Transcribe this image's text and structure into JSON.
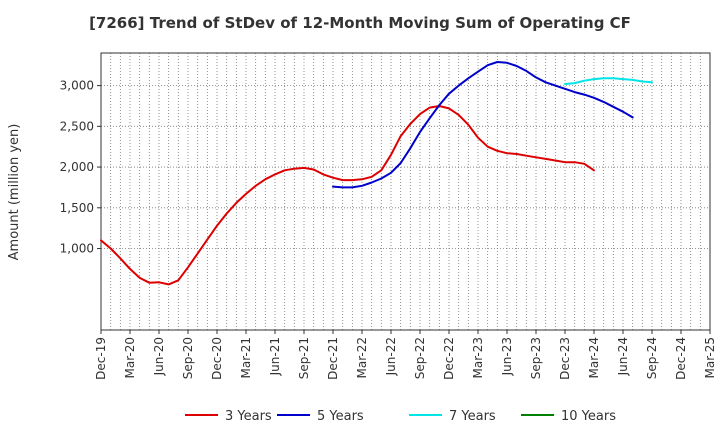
{
  "chart_data": {
    "type": "line",
    "title": "[7266]  Trend of StDev of 12-Month Moving Sum of Operating CF",
    "xlabel": "",
    "ylabel": "Amount (million yen)",
    "ylim": [
      0,
      3400
    ],
    "grid": true,
    "legend_position": "bottom",
    "x_ticks": [
      "Dec-19",
      "Mar-20",
      "Jun-20",
      "Sep-20",
      "Dec-20",
      "Mar-21",
      "Jun-21",
      "Sep-21",
      "Dec-21",
      "Mar-22",
      "Jun-22",
      "Sep-22",
      "Dec-22",
      "Mar-23",
      "Jun-23",
      "Sep-23",
      "Dec-23",
      "Mar-24",
      "Jun-24",
      "Sep-24",
      "Dec-24",
      "Mar-25"
    ],
    "y_ticks": [
      1000,
      1500,
      2000,
      2500,
      3000
    ],
    "y_tick_labels": [
      "1,000",
      "1,500",
      "2,000",
      "2,500",
      "3,000"
    ],
    "series": [
      {
        "name": "3 Years",
        "color": "#dd0000",
        "start_month_index": 0,
        "values": [
          1100,
          1000,
          880,
          750,
          640,
          580,
          585,
          560,
          610,
          770,
          940,
          1110,
          1280,
          1430,
          1560,
          1670,
          1770,
          1850,
          1910,
          1960,
          1980,
          1990,
          1970,
          1910,
          1870,
          1840,
          1840,
          1850,
          1880,
          1960,
          2150,
          2380,
          2530,
          2650,
          2730,
          2750,
          2720,
          2640,
          2520,
          2360,
          2250,
          2200,
          2170,
          2160,
          2140,
          2120,
          2100,
          2080,
          2060,
          2060,
          2040,
          1960
        ]
      },
      {
        "name": "5 Years",
        "color": "#0000cc",
        "start_month_index": 24,
        "values": [
          1760,
          1750,
          1750,
          1770,
          1810,
          1860,
          1930,
          2050,
          2230,
          2430,
          2600,
          2760,
          2900,
          3000,
          3090,
          3170,
          3250,
          3290,
          3280,
          3240,
          3180,
          3100,
          3040,
          3000,
          2960,
          2920,
          2890,
          2850,
          2800,
          2740,
          2680,
          2610
        ]
      },
      {
        "name": "7 Years",
        "color": "#00e5e5",
        "start_month_index": 48,
        "values": [
          3020,
          3030,
          3060,
          3080,
          3090,
          3090,
          3080,
          3070,
          3050,
          3040
        ]
      },
      {
        "name": "10 Years",
        "color": "#008000",
        "start_month_index": 0,
        "values": []
      }
    ]
  }
}
